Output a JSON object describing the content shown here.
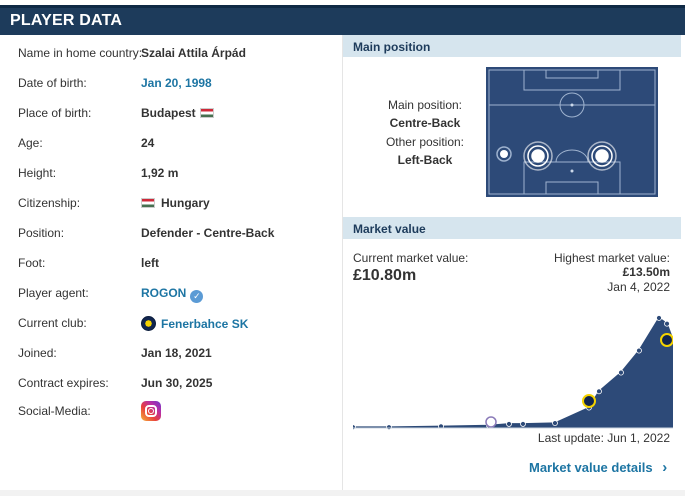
{
  "header": {
    "title": "PLAYER DATA"
  },
  "player": {
    "rows": [
      {
        "label": "Name in home country:",
        "value": "Szalai Attila Árpád"
      },
      {
        "label": "Date of birth:",
        "value": "Jan 20, 1998"
      },
      {
        "label": "Place of birth:",
        "value": "Budapest"
      },
      {
        "label": "Age:",
        "value": "24"
      },
      {
        "label": "Height:",
        "value": "1,92 m"
      },
      {
        "label": "Citizenship:",
        "value": "Hungary"
      },
      {
        "label": "Position:",
        "value": "Defender - Centre-Back"
      },
      {
        "label": "Foot:",
        "value": "left"
      },
      {
        "label": "Player agent:",
        "value": "ROGON"
      },
      {
        "label": "Current club:",
        "value": "Fenerbahce SK"
      },
      {
        "label": "Joined:",
        "value": "Jan 18, 2021"
      },
      {
        "label": "Contract expires:",
        "value": "Jun 30, 2025"
      },
      {
        "label": "Social-Media:",
        "value": ""
      }
    ]
  },
  "main_position": {
    "heading": "Main position",
    "main_label": "Main position:",
    "main_value": "Centre-Back",
    "other_label": "Other position:",
    "other_value": "Left-Back"
  },
  "market_value": {
    "heading": "Market value",
    "current_label": "Current market value:",
    "current_value": "£10.80m",
    "highest_label": "Highest market value:",
    "highest_value": "£13.50m",
    "highest_date": "Jan 4, 2022",
    "last_update": "Last update: Jun 1, 2022",
    "details_link": "Market value details",
    "link_arrow": "›"
  },
  "chart_data": {
    "type": "area",
    "values": [
      0.1,
      0.1,
      0.2,
      0.3,
      0.5,
      0.5,
      0.6,
      2.5,
      4.5,
      6.8,
      9.5,
      13.5,
      12.8,
      10.8
    ]
  },
  "colors": {
    "header_bg": "#1d3b5b",
    "section_bg": "#d6e5ee",
    "link": "#1d75a3",
    "pitch": "#2d4a78",
    "area": "#2d4a78"
  }
}
